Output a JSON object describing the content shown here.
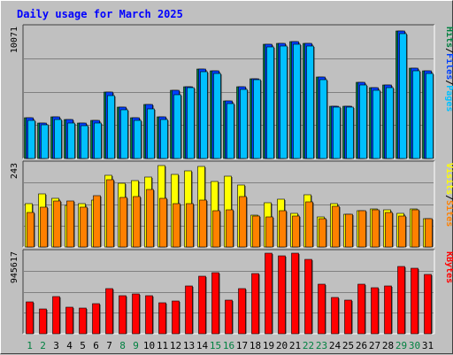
{
  "chart_data": {
    "type": "bar",
    "title": "Daily usage for March 2025",
    "categories": [
      "1",
      "2",
      "3",
      "4",
      "5",
      "6",
      "7",
      "8",
      "9",
      "10",
      "11",
      "12",
      "13",
      "14",
      "15",
      "16",
      "17",
      "18",
      "19",
      "20",
      "21",
      "22",
      "23",
      "24",
      "25",
      "26",
      "27",
      "28",
      "29",
      "30",
      "31"
    ],
    "weekend_days": [
      "1",
      "2",
      "8",
      "9",
      "15",
      "16",
      "22",
      "23",
      "29",
      "30"
    ],
    "panels": [
      {
        "id": "requests",
        "max_label": "10071",
        "ylim": [
          0,
          10071
        ],
        "labels": [
          {
            "text": "Hits",
            "color": "#008040"
          },
          {
            "text": "/",
            "color": "#000000"
          },
          {
            "text": "Files",
            "color": "#0040ff"
          },
          {
            "text": "/",
            "color": "#000000"
          },
          {
            "text": "Pages",
            "color": "#00c0ff"
          }
        ],
        "series": [
          {
            "name": "Hits",
            "color": "#008040",
            "values": [
              3100,
              2700,
              3200,
              3000,
              2700,
              2900,
              5100,
              3900,
              3100,
              4100,
              3200,
              5200,
              5500,
              6800,
              6700,
              4400,
              5500,
              6100,
              8700,
              8800,
              8900,
              8800,
              6200,
              4000,
              4000,
              5800,
              5400,
              5600,
              9700,
              6900,
              6700
            ]
          },
          {
            "name": "Files",
            "color": "#0040ff",
            "values": [
              3100,
              2700,
              3200,
              3000,
              2700,
              2900,
              5100,
              3900,
              3100,
              4100,
              3200,
              5200,
              5500,
              6800,
              6700,
              4400,
              5500,
              6100,
              8700,
              8800,
              8900,
              8800,
              6200,
              4000,
              4000,
              5800,
              5400,
              5600,
              9700,
              6900,
              6700
            ]
          },
          {
            "name": "Pages",
            "color": "#00c0ff",
            "values": [
              2900,
              2600,
              3000,
              2700,
              2500,
              2700,
              4800,
              3700,
              2900,
              3800,
              3000,
              4900,
              5400,
              6600,
              6500,
              4200,
              5300,
              6000,
              8500,
              8600,
              8700,
              8600,
              6000,
              3900,
              3900,
              5600,
              5200,
              5400,
              9500,
              6700,
              6500
            ]
          }
        ]
      },
      {
        "id": "visits",
        "max_label": "243",
        "ylim": [
          0,
          243
        ],
        "labels": [
          {
            "text": "Visits",
            "color": "#ffff00"
          },
          {
            "text": "/",
            "color": "#000000"
          },
          {
            "text": "Sites",
            "color": "#ff8000"
          }
        ],
        "series": [
          {
            "name": "Visits",
            "color": "#ffff00",
            "values": [
              125,
              153,
              140,
              120,
              125,
              135,
              208,
              185,
              193,
              202,
              235,
              210,
              220,
              232,
              190,
              205,
              180,
              92,
              128,
              138,
              98,
              152,
              88,
              125,
              95,
              105,
              110,
              108,
              97,
              110,
              82
            ]
          },
          {
            "name": "Sites",
            "color": "#ff8000",
            "values": [
              100,
              115,
              132,
              132,
              115,
              148,
              195,
              142,
              145,
              165,
              140,
              125,
              125,
              135,
              105,
              108,
              145,
              90,
              88,
              105,
              90,
              130,
              82,
              118,
              95,
              105,
              108,
              100,
              90,
              108,
              82
            ]
          }
        ]
      },
      {
        "id": "kbytes",
        "max_label": "945617",
        "ylim": [
          0,
          945617
        ],
        "labels": [
          {
            "text": "KBytes",
            "color": "#ff0000"
          }
        ],
        "series": [
          {
            "name": "KBytes",
            "color": "#ff0000",
            "values": [
              368000,
              287000,
              427000,
              302000,
              294000,
              345000,
              514000,
              441000,
              456000,
              434000,
              353000,
              376000,
              545000,
              662000,
              706000,
              390000,
              523000,
              691000,
              926000,
              896000,
              926000,
              853000,
              574000,
              412000,
              382000,
              574000,
              529000,
              545000,
              772000,
              757000,
              684000
            ]
          }
        ]
      }
    ]
  }
}
